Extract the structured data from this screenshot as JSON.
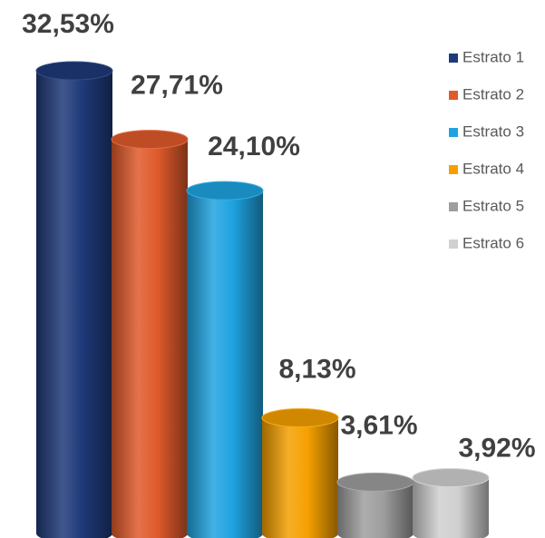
{
  "chart_data": {
    "type": "bar",
    "series": [
      {
        "name": "Estrato 1",
        "color": "#1f3a7a",
        "values": [
          32.53
        ],
        "value_labels": [
          "32,53%"
        ]
      },
      {
        "name": "Estrato 2",
        "color": "#e05a2b",
        "values": [
          27.71
        ],
        "value_labels": [
          "27,71%"
        ]
      },
      {
        "name": "Estrato 3",
        "color": "#1fa3e0",
        "values": [
          24.1
        ],
        "value_labels": [
          "24,10%"
        ]
      },
      {
        "name": "Estrato 4",
        "color": "#f5a000",
        "values": [
          8.13
        ],
        "value_labels": [
          "8,13%"
        ]
      },
      {
        "name": "Estrato 5",
        "color": "#9e9e9e",
        "values": [
          3.61
        ],
        "value_labels": [
          "3,61%"
        ]
      },
      {
        "name": "Estrato 6",
        "color": "#d0d0d0",
        "values": [
          3.92
        ],
        "value_labels": [
          "3,92%"
        ]
      }
    ],
    "legend": "right"
  }
}
